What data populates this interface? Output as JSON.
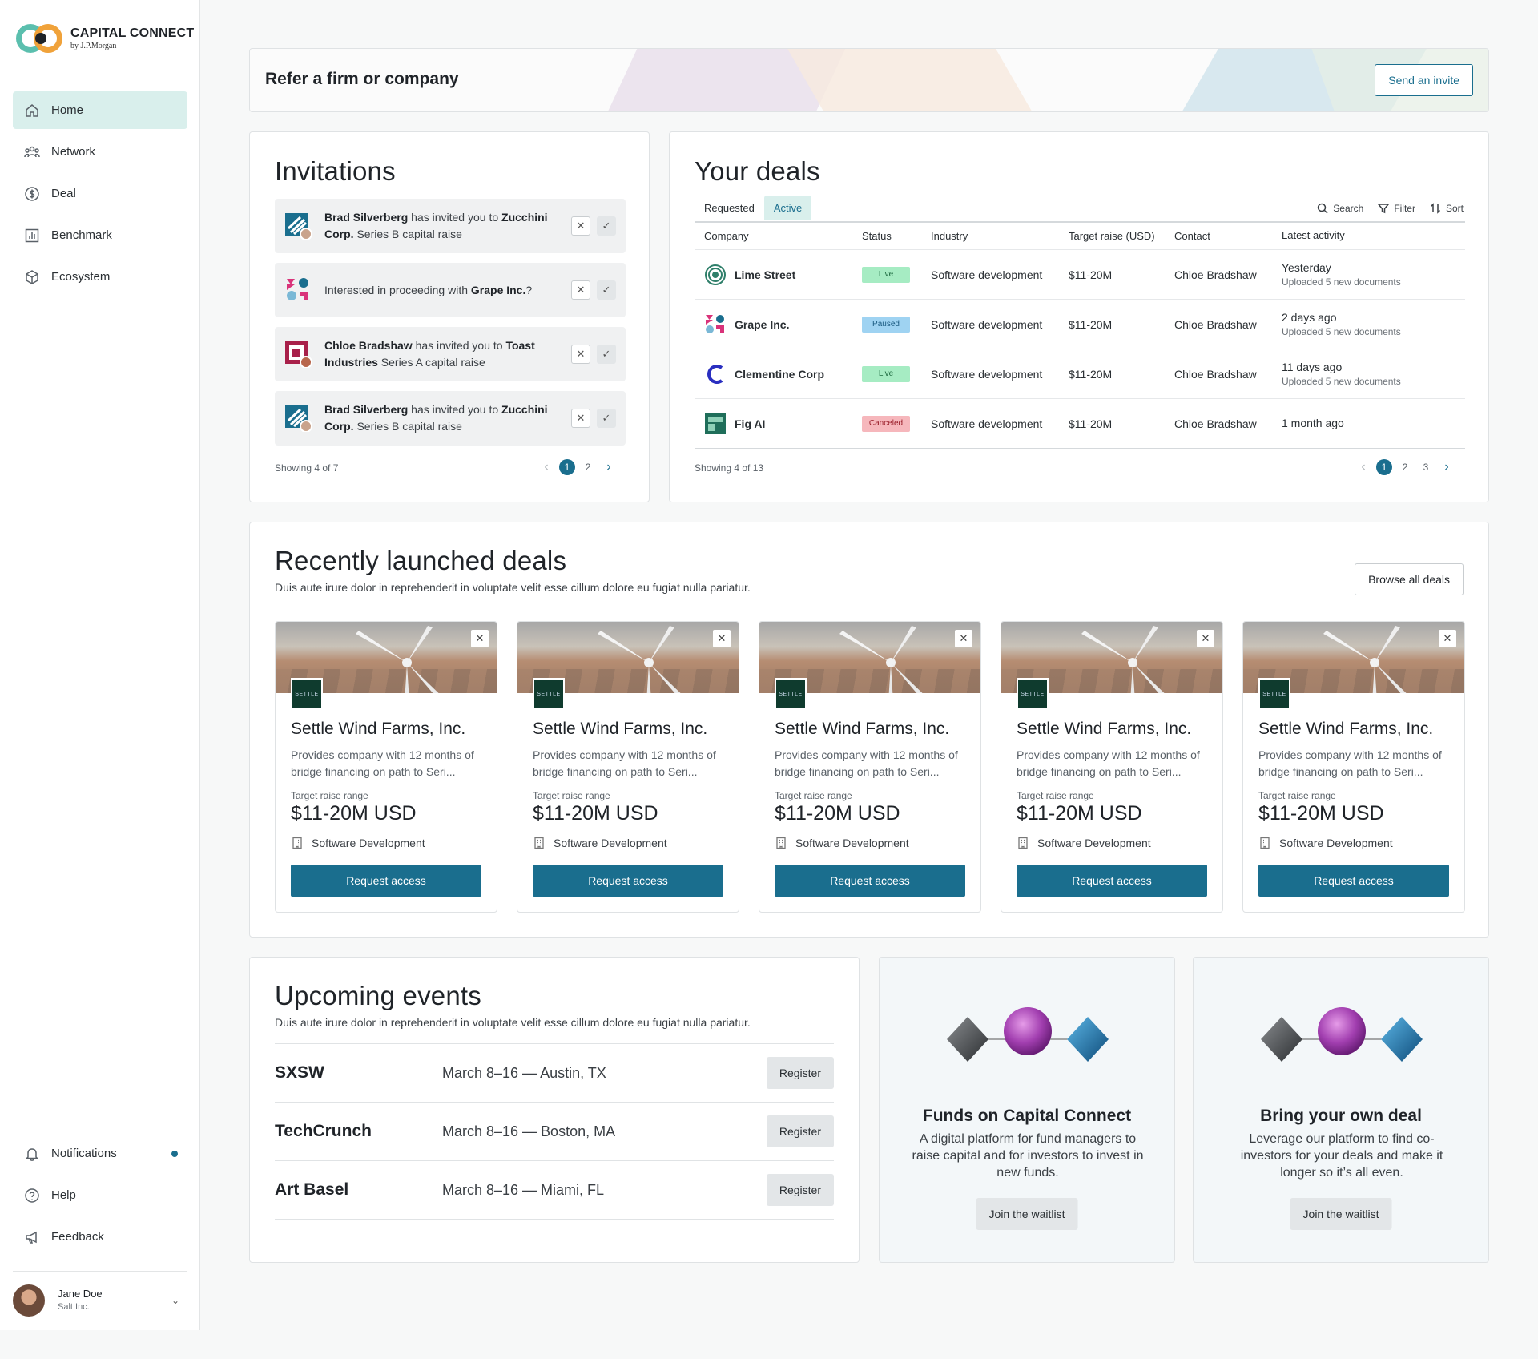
{
  "brand": {
    "title": "CAPITAL CONNECT",
    "sub": "by J.P.Morgan"
  },
  "nav": [
    {
      "label": "Home",
      "icon": "home-icon",
      "active": true
    },
    {
      "label": "Network",
      "icon": "network-icon"
    },
    {
      "label": "Deal",
      "icon": "dollar-icon"
    },
    {
      "label": "Benchmark",
      "icon": "chart-icon"
    },
    {
      "label": "Ecosystem",
      "icon": "cube-icon"
    }
  ],
  "nav_bottom": [
    {
      "label": "Notifications",
      "icon": "bell-icon"
    },
    {
      "label": "Help",
      "icon": "help-icon"
    },
    {
      "label": "Feedback",
      "icon": "megaphone-icon"
    }
  ],
  "user": {
    "name": "Jane Doe",
    "org": "Salt Inc."
  },
  "refer": {
    "title": "Refer a firm or company",
    "button": "Send an invite"
  },
  "invitations": {
    "title": "Invitations",
    "items": [
      {
        "name": "Brad Silverberg",
        "mid": " has invited you to ",
        "company": "Zucchini Corp.",
        "tail": " Series B capital raise"
      },
      {
        "pre": "Interested in proceeding with ",
        "company": "Grape Inc.",
        "tail": "?"
      },
      {
        "name": "Chloe Bradshaw",
        "mid": " has invited you to ",
        "company": "Toast Industries",
        "tail": " Series A capital raise"
      },
      {
        "name": "Brad Silverberg",
        "mid": " has invited you to ",
        "company": "Zucchini Corp.",
        "tail": " Series B capital raise"
      }
    ],
    "showing": "Showing 4 of 7",
    "pages": [
      "1",
      "2"
    ]
  },
  "deals": {
    "title": "Your deals",
    "tabs": [
      "Requested",
      "Active"
    ],
    "tools": [
      "Search",
      "Filter",
      "Sort"
    ],
    "columns": [
      "Company",
      "Status",
      "Industry",
      "Target raise (USD)",
      "Contact",
      "Latest activity"
    ],
    "rows": [
      {
        "company": "Lime Street",
        "status": "Live",
        "industry": "Software development",
        "raise": "$11-20M",
        "contact": "Chloe Bradshaw",
        "activity": "Yesterday",
        "detail": "Uploaded 5 new documents"
      },
      {
        "company": "Grape Inc.",
        "status": "Paused",
        "industry": "Software development",
        "raise": "$11-20M",
        "contact": "Chloe Bradshaw",
        "activity": "2 days ago",
        "detail": "Uploaded 5 new documents"
      },
      {
        "company": "Clementine Corp",
        "status": "Live",
        "industry": "Software development",
        "raise": "$11-20M",
        "contact": "Chloe Bradshaw",
        "activity": "11 days ago",
        "detail": "Uploaded 5 new documents"
      },
      {
        "company": "Fig AI",
        "status": "Canceled",
        "industry": "Software development",
        "raise": "$11-20M",
        "contact": "Chloe Bradshaw",
        "activity": "1 month ago",
        "detail": ""
      }
    ],
    "showing": "Showing 4 of 13",
    "pages": [
      "1",
      "2",
      "3"
    ]
  },
  "recent": {
    "title": "Recently launched deals",
    "subtitle": "Duis aute irure dolor in reprehenderit in voluptate velit esse cillum dolore eu fugiat nulla pariatur.",
    "button": "Browse all deals",
    "cards": [
      {
        "logo": "SETTLE",
        "name": "Settle Wind Farms, Inc.",
        "desc": "Provides company with 12 months of bridge financing on path to Seri...",
        "label": "Target raise range",
        "value": "$11-20M USD",
        "industry": "Software Development",
        "cta": "Request access"
      },
      {
        "logo": "SETTLE",
        "name": "Settle Wind Farms, Inc.",
        "desc": "Provides company with 12 months of bridge financing on path to Seri...",
        "label": "Target raise range",
        "value": "$11-20M USD",
        "industry": "Software Development",
        "cta": "Request access"
      },
      {
        "logo": "SETTLE",
        "name": "Settle Wind Farms, Inc.",
        "desc": "Provides company with 12 months of bridge financing on path to Seri...",
        "label": "Target raise range",
        "value": "$11-20M USD",
        "industry": "Software Development",
        "cta": "Request access"
      },
      {
        "logo": "SETTLE",
        "name": "Settle Wind Farms, Inc.",
        "desc": "Provides company with 12 months of bridge financing on path to Seri...",
        "label": "Target raise range",
        "value": "$11-20M USD",
        "industry": "Software Development",
        "cta": "Request access"
      },
      {
        "logo": "SETTLE",
        "name": "Settle Wind Farms, Inc.",
        "desc": "Provides company with 12 months of bridge financing on path to Seri...",
        "label": "Target raise range",
        "value": "$11-20M USD",
        "industry": "Software Development",
        "cta": "Request access"
      }
    ]
  },
  "events": {
    "title": "Upcoming events",
    "subtitle": "Duis aute irure dolor in reprehenderit in voluptate velit esse cillum dolore eu fugiat nulla pariatur.",
    "items": [
      {
        "name": "SXSW",
        "date": "March 8–16 — Austin, TX",
        "cta": "Register"
      },
      {
        "name": "TechCrunch",
        "date": "March 8–16 — Boston, MA",
        "cta": "Register"
      },
      {
        "name": "Art Basel",
        "date": "March 8–16 — Miami, FL",
        "cta": "Register"
      }
    ]
  },
  "promos": [
    {
      "title": "Funds on Capital Connect",
      "desc": "A digital platform for fund managers to raise capital and for investors to invest in new funds.",
      "cta": "Join the waitlist"
    },
    {
      "title": "Bring your own deal",
      "desc": "Leverage our platform to find co-investors for your deals and make it longer so it’s all even.",
      "cta": "Join the waitlist"
    }
  ],
  "colors": {
    "accent": "#1a6e8e",
    "active_bg": "#d9efec",
    "live": "#a6ecc3",
    "paused": "#9fd3f2",
    "canceled": "#f6b7bc"
  }
}
